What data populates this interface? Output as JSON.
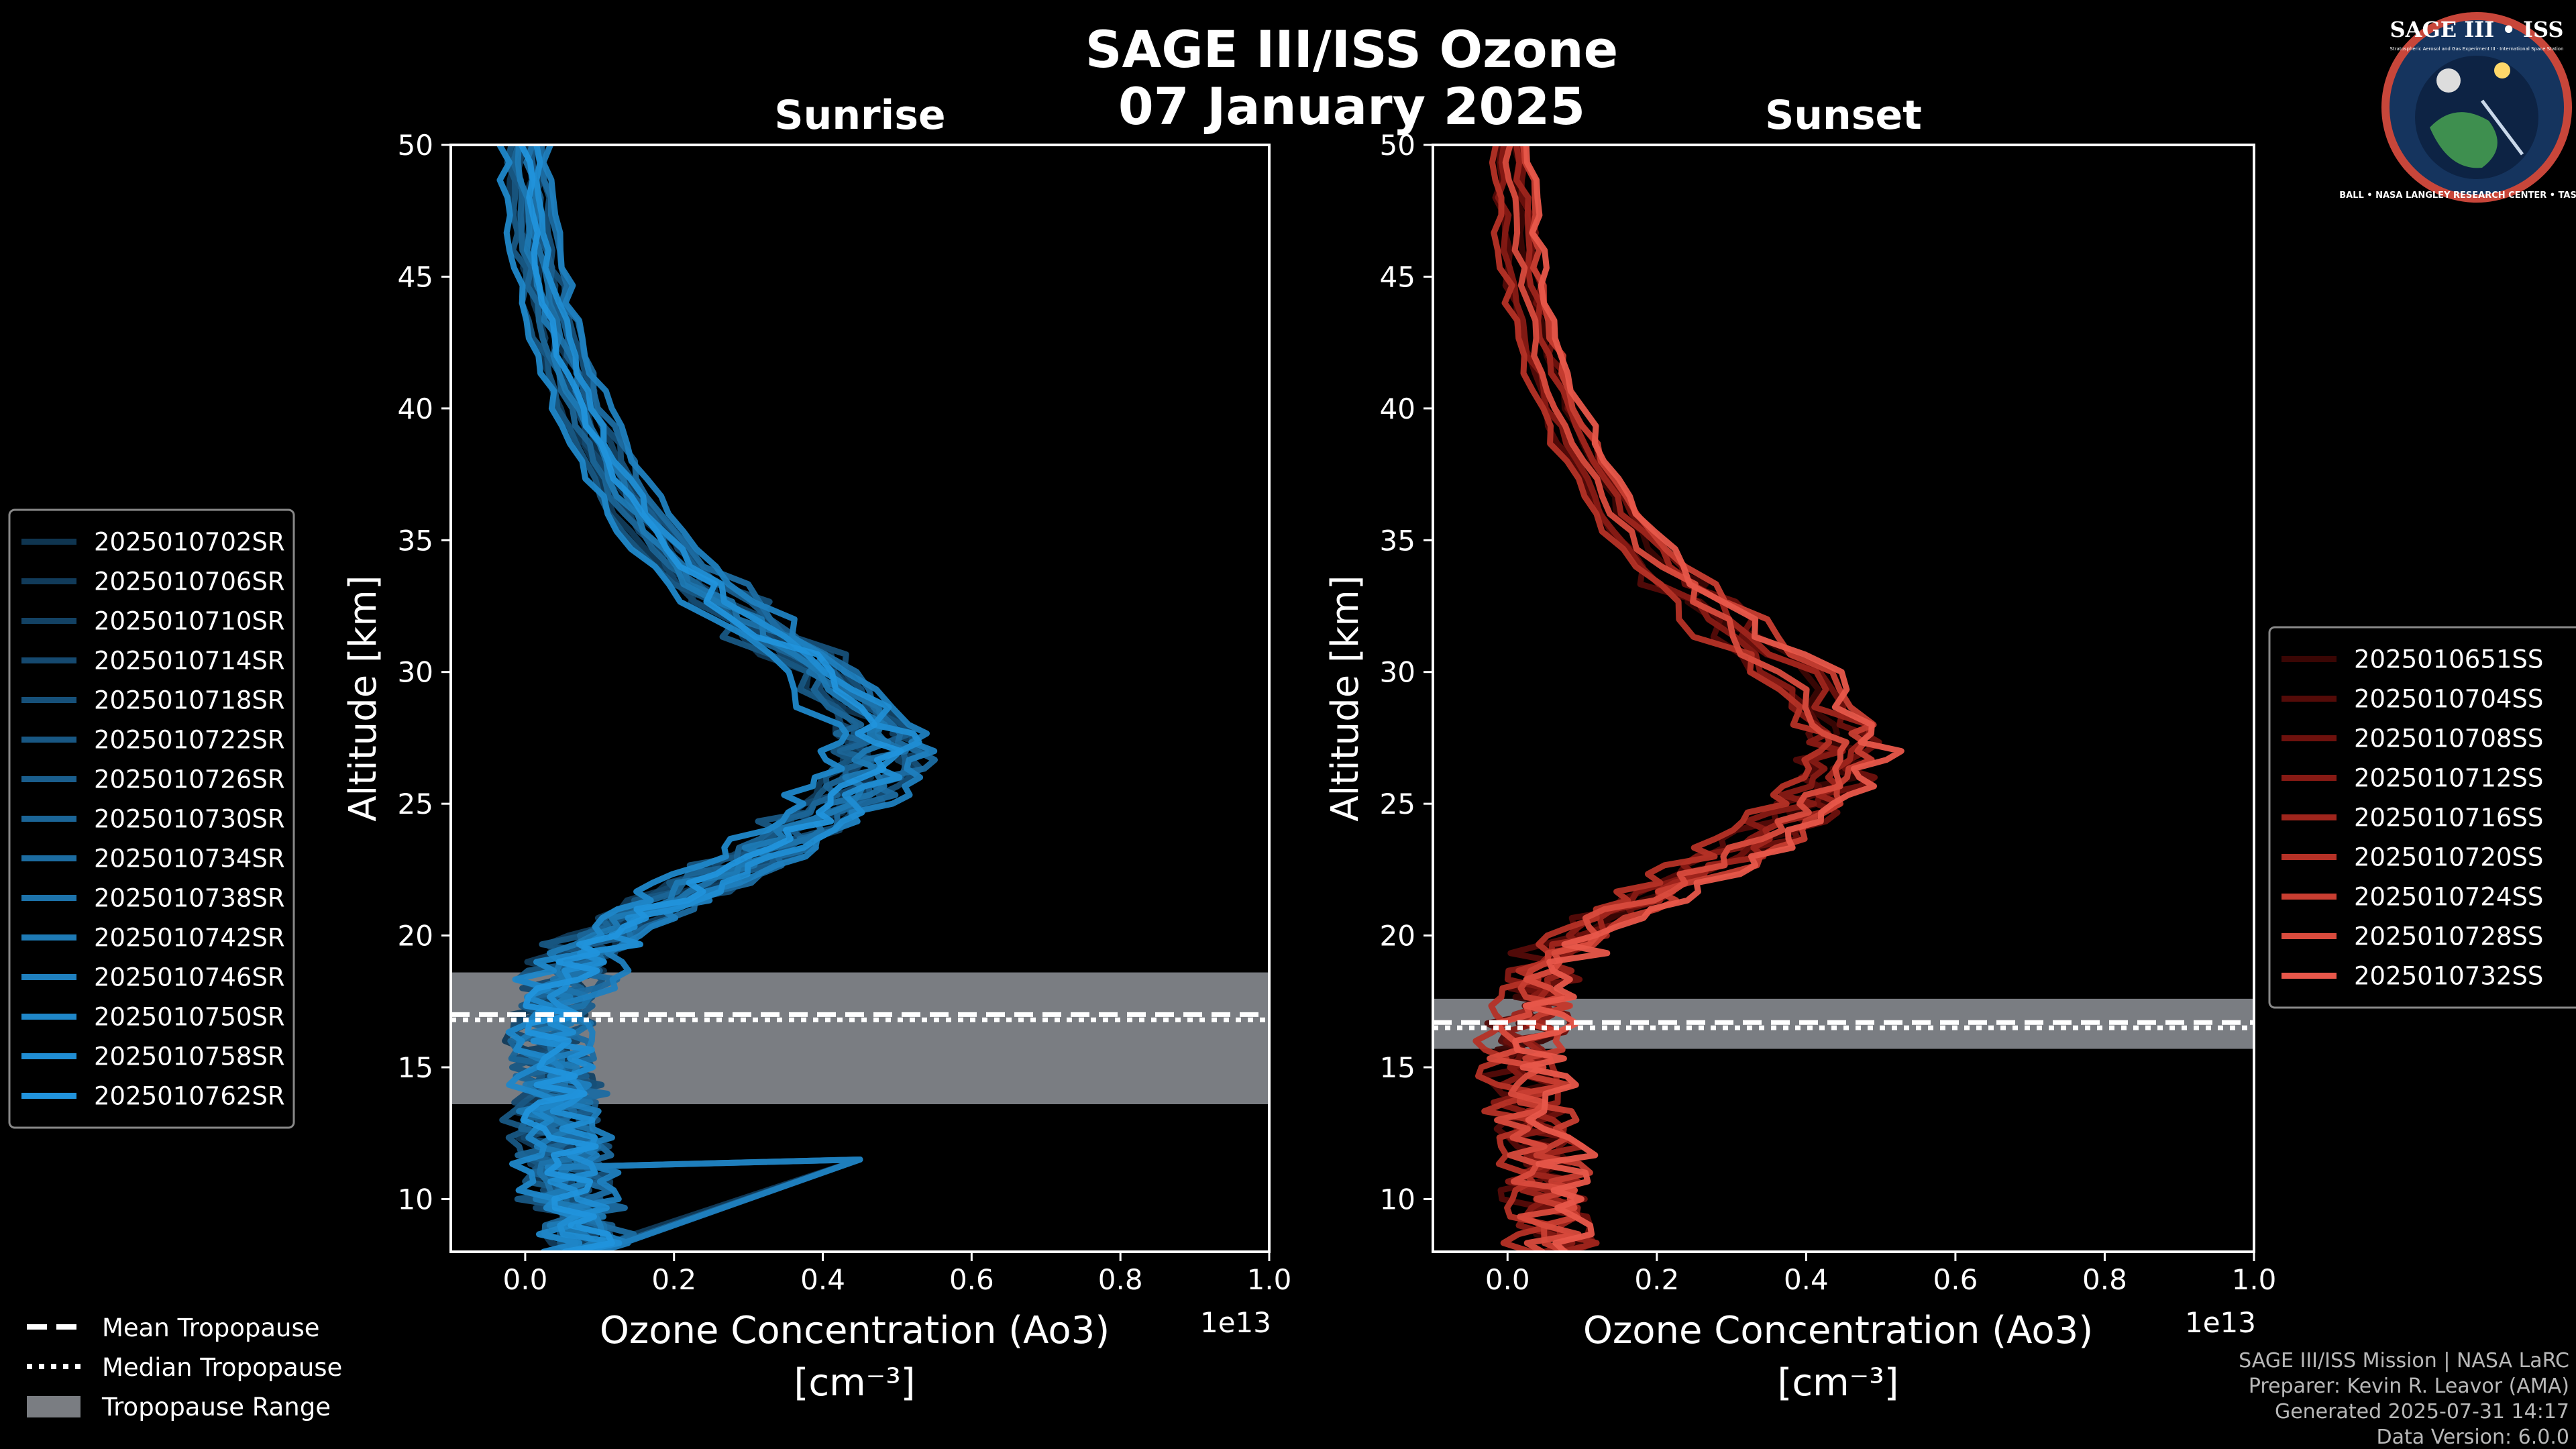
{
  "title": {
    "line1": "SAGE III/ISS Ozone",
    "line2": "07 January 2025"
  },
  "logo": {
    "title": "SAGE III • ISS",
    "subtitle": "Stratospheric Aerosol and Gas Experiment III · International Space Station",
    "ring_text": "BALL • NASA LANGLEY RESEARCH CENTER • TAS-I • ESA"
  },
  "colors": {
    "background": "#000000",
    "sunrise_base": "#1f8fd6",
    "sunset_base": "#e8574a",
    "tropopause_range": "#7a7d82"
  },
  "chart_data": [
    {
      "type": "line",
      "panel": "sunrise",
      "title": "Sunrise",
      "xlabel_line1": "Ozone Concentration (Ao3)",
      "xlabel_line2": "[cm⁻³]",
      "ylabel": "Altitude [km]",
      "x_multiplier_label": "1e13",
      "xlim": [
        -0.1,
        1.0
      ],
      "ylim": [
        8,
        50
      ],
      "xticks": [
        0.0,
        0.2,
        0.4,
        0.6,
        0.8,
        1.0
      ],
      "xtick_labels": [
        "0.0",
        "0.2",
        "0.4",
        "0.6",
        "0.8",
        "1.0"
      ],
      "yticks": [
        10,
        15,
        20,
        25,
        30,
        35,
        40,
        45,
        50
      ],
      "ytick_labels": [
        "10",
        "15",
        "20",
        "25",
        "30",
        "35",
        "40",
        "45",
        "50"
      ],
      "tropopause": {
        "mean": 17.0,
        "median": 16.8,
        "range": [
          13.6,
          18.6
        ]
      },
      "base_profile": {
        "altitude": [
          50,
          48,
          46,
          44,
          42,
          40,
          38,
          36,
          34,
          32,
          30,
          28,
          27,
          26,
          25,
          24,
          23,
          22,
          21,
          20,
          19,
          18,
          17,
          16,
          15,
          14,
          13,
          12,
          11,
          10,
          9,
          8
        ],
        "ozone": [
          0.0,
          0.005,
          0.015,
          0.03,
          0.05,
          0.075,
          0.11,
          0.15,
          0.21,
          0.3,
          0.4,
          0.47,
          0.48,
          0.46,
          0.42,
          0.37,
          0.31,
          0.24,
          0.17,
          0.11,
          0.07,
          0.05,
          0.04,
          0.035,
          0.035,
          0.04,
          0.04,
          0.05,
          0.05,
          0.06,
          0.07,
          0.09
        ]
      },
      "series": [
        {
          "name": "2025010702SR",
          "color": "#0f3550",
          "offset": 0.0
        },
        {
          "name": "2025010706SR",
          "color": "#113b5a",
          "offset": -0.02
        },
        {
          "name": "2025010710SR",
          "color": "#134264",
          "offset": 0.015
        },
        {
          "name": "2025010714SR",
          "color": "#15496f",
          "offset": -0.01
        },
        {
          "name": "2025010718SR",
          "color": "#165079",
          "offset": 0.02
        },
        {
          "name": "2025010722SR",
          "color": "#185783",
          "offset": -0.025
        },
        {
          "name": "2025010726SR",
          "color": "#1a5e8d",
          "offset": 0.01
        },
        {
          "name": "2025010730SR",
          "color": "#1b6597",
          "offset": -0.015
        },
        {
          "name": "2025010734SR",
          "color": "#1c6ca1",
          "offset": 0.025
        },
        {
          "name": "2025010738SR",
          "color": "#1d73ab",
          "offset": 0.005
        },
        {
          "name": "2025010742SR",
          "color": "#1e7ab5",
          "offset": -0.005
        },
        {
          "name": "2025010746SR",
          "color": "#1f80bf",
          "offset": 0.03
        },
        {
          "name": "2025010750SR",
          "color": "#1f87c9",
          "offset": -0.03
        },
        {
          "name": "2025010758SR",
          "color": "#208dd3",
          "offset": 0.012
        },
        {
          "name": "2025010762SR",
          "color": "#2193dc",
          "offset": 0.0
        }
      ]
    },
    {
      "type": "line",
      "panel": "sunset",
      "title": "Sunset",
      "xlabel_line1": "Ozone Concentration (Ao3)",
      "xlabel_line2": "[cm⁻³]",
      "ylabel": "Altitude [km]",
      "x_multiplier_label": "1e13",
      "xlim": [
        -0.1,
        1.0
      ],
      "ylim": [
        8,
        50
      ],
      "xticks": [
        0.0,
        0.2,
        0.4,
        0.6,
        0.8,
        1.0
      ],
      "xtick_labels": [
        "0.0",
        "0.2",
        "0.4",
        "0.6",
        "0.8",
        "1.0"
      ],
      "yticks": [
        10,
        15,
        20,
        25,
        30,
        35,
        40,
        45,
        50
      ],
      "ytick_labels": [
        "10",
        "15",
        "20",
        "25",
        "30",
        "35",
        "40",
        "45",
        "50"
      ],
      "tropopause": {
        "mean": 16.7,
        "median": 16.5,
        "range": [
          15.7,
          17.6
        ]
      },
      "base_profile": {
        "altitude": [
          50,
          48,
          46,
          44,
          42,
          40,
          38,
          36,
          34,
          32,
          30,
          28,
          27,
          26,
          25,
          24,
          23,
          22,
          21,
          20,
          19,
          18,
          17,
          16,
          15,
          14,
          13,
          12,
          11,
          10,
          9,
          8
        ],
        "ozone": [
          0.0,
          0.005,
          0.012,
          0.025,
          0.04,
          0.065,
          0.1,
          0.14,
          0.2,
          0.28,
          0.37,
          0.43,
          0.45,
          0.43,
          0.4,
          0.35,
          0.29,
          0.22,
          0.15,
          0.09,
          0.05,
          0.035,
          0.03,
          0.02,
          0.02,
          0.03,
          0.03,
          0.04,
          0.04,
          0.05,
          0.06,
          0.06
        ]
      },
      "series": [
        {
          "name": "2025010651SS",
          "color": "#3a0604",
          "offset": 0.01
        },
        {
          "name": "2025010704SS",
          "color": "#540b08",
          "offset": -0.015
        },
        {
          "name": "2025010708SS",
          "color": "#6e110d",
          "offset": 0.02
        },
        {
          "name": "2025010712SS",
          "color": "#871a14",
          "offset": -0.01
        },
        {
          "name": "2025010716SS",
          "color": "#9f251c",
          "offset": 0.015
        },
        {
          "name": "2025010720SS",
          "color": "#b53126",
          "offset": -0.02
        },
        {
          "name": "2025010724SS",
          "color": "#c83e31",
          "offset": 0.025
        },
        {
          "name": "2025010728SS",
          "color": "#d94b3d",
          "offset": 0.0
        },
        {
          "name": "2025010732SS",
          "color": "#e8574a",
          "offset": 0.03
        }
      ]
    }
  ],
  "tropopause_legend": {
    "mean": "Mean Tropopause",
    "median": "Median Tropopause",
    "range": "Tropopause Range"
  },
  "footer": {
    "line1": "SAGE III/ISS Mission | NASA LaRC",
    "line2": "Preparer: Kevin R. Leavor (AMA)",
    "line3": "Generated 2025-07-31 14:17",
    "line4": "Data Version: 6.0.0"
  }
}
